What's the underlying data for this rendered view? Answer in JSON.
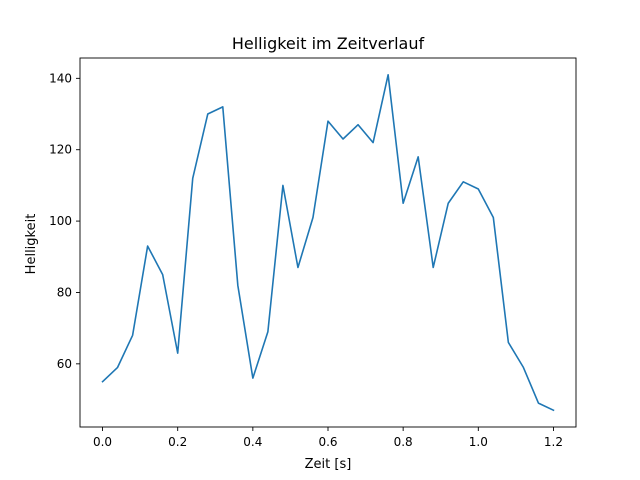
{
  "chart_data": {
    "type": "line",
    "title": "Helligkeit im Zeitverlauf",
    "xlabel": "Zeit [s]",
    "ylabel": "Helligkeit",
    "xlim": [
      -0.06,
      1.26
    ],
    "ylim": [
      42.3,
      145.7
    ],
    "xticks": [
      0.0,
      0.2,
      0.4,
      0.6,
      0.8,
      1.0,
      1.2
    ],
    "xtick_labels": [
      "0.0",
      "0.2",
      "0.4",
      "0.6",
      "0.8",
      "1.0",
      "1.2"
    ],
    "yticks": [
      60,
      80,
      100,
      120,
      140
    ],
    "ytick_labels": [
      "60",
      "80",
      "100",
      "120",
      "140"
    ],
    "grid": false,
    "colors": {
      "line": "#1f77b4"
    },
    "series": [
      {
        "x": [
          0.0,
          0.04,
          0.08,
          0.12,
          0.16,
          0.2,
          0.24,
          0.28,
          0.32,
          0.36,
          0.4,
          0.44,
          0.48,
          0.52,
          0.56,
          0.6,
          0.64,
          0.68,
          0.72,
          0.76,
          0.8,
          0.84,
          0.88,
          0.92,
          0.96,
          1.0,
          1.04,
          1.08,
          1.12,
          1.16,
          1.2
        ],
        "values": [
          55,
          59,
          68,
          93,
          85,
          63,
          112,
          130,
          132,
          82,
          56,
          69,
          110,
          87,
          101,
          128,
          123,
          127,
          122,
          141,
          105,
          118,
          87,
          105,
          111,
          109,
          101,
          66,
          59,
          49,
          47
        ]
      }
    ]
  }
}
